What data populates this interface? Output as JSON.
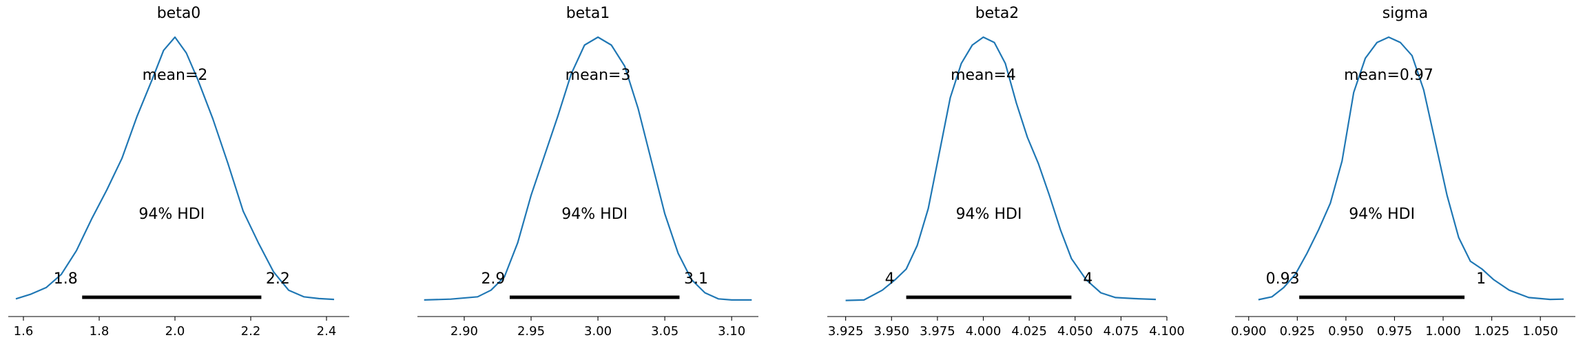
{
  "chart_data": [
    {
      "type": "line",
      "title": "beta0",
      "mean_label": "mean=2",
      "hdi_label": "94% HDI",
      "hdi": [
        1.755,
        2.228
      ],
      "hdi_labels": [
        "1.8",
        "2.2"
      ],
      "xlim": [
        1.56,
        2.46
      ],
      "xticks": [
        1.6,
        1.8,
        2.0,
        2.2,
        2.4
      ],
      "xtick_labels": [
        "1.6",
        "1.8",
        "2.0",
        "2.2",
        "2.4"
      ],
      "color": "#1f77b4",
      "kde": {
        "x": [
          1.58,
          1.62,
          1.66,
          1.7,
          1.74,
          1.78,
          1.82,
          1.86,
          1.9,
          1.94,
          1.97,
          2.0,
          2.03,
          2.06,
          2.1,
          2.14,
          2.18,
          2.22,
          2.26,
          2.3,
          2.34,
          2.38,
          2.42
        ],
        "y": [
          0.007,
          0.025,
          0.05,
          0.1,
          0.19,
          0.31,
          0.42,
          0.54,
          0.7,
          0.84,
          0.95,
          1.0,
          0.94,
          0.84,
          0.69,
          0.52,
          0.34,
          0.22,
          0.11,
          0.04,
          0.015,
          0.008,
          0.005
        ]
      }
    },
    {
      "type": "line",
      "title": "beta1",
      "mean_label": "mean=3",
      "hdi_label": "94% HDI",
      "hdi": [
        2.934,
        3.061
      ],
      "hdi_labels": [
        "2.9",
        "3.1"
      ],
      "xlim": [
        2.865,
        3.12
      ],
      "xticks": [
        2.9,
        2.95,
        3.0,
        3.05,
        3.1
      ],
      "xtick_labels": [
        "2.90",
        "2.95",
        "3.00",
        "3.05",
        "3.10"
      ],
      "color": "#1f77b4",
      "kde": {
        "x": [
          2.87,
          2.89,
          2.91,
          2.92,
          2.93,
          2.94,
          2.95,
          2.96,
          2.97,
          2.98,
          2.99,
          3.0,
          3.01,
          3.02,
          3.03,
          3.04,
          3.05,
          3.06,
          3.07,
          3.08,
          3.09,
          3.1,
          3.115
        ],
        "y": [
          0.003,
          0.006,
          0.015,
          0.04,
          0.09,
          0.22,
          0.4,
          0.55,
          0.7,
          0.86,
          0.97,
          1.0,
          0.97,
          0.89,
          0.73,
          0.53,
          0.33,
          0.18,
          0.08,
          0.03,
          0.007,
          0.003,
          0.003
        ]
      }
    },
    {
      "type": "line",
      "title": "beta2",
      "mean_label": "mean=4",
      "hdi_label": "94% HDI",
      "hdi": [
        3.958,
        4.048
      ],
      "hdi_labels": [
        "4",
        "4"
      ],
      "xlim": [
        3.915,
        4.1
      ],
      "xticks": [
        3.925,
        3.95,
        3.975,
        4.0,
        4.025,
        4.05,
        4.075,
        4.1
      ],
      "xtick_labels": [
        "3.925",
        "3.950",
        "3.975",
        "4.000",
        "4.025",
        "4.050",
        "4.075",
        "4.100"
      ],
      "color": "#1f77b4",
      "kde": {
        "x": [
          3.925,
          3.935,
          3.945,
          3.952,
          3.958,
          3.964,
          3.97,
          3.976,
          3.982,
          3.988,
          3.994,
          4.0,
          4.006,
          4.012,
          4.018,
          4.024,
          4.03,
          4.036,
          4.042,
          4.048,
          4.056,
          4.064,
          4.072,
          4.082,
          4.094
        ],
        "y": [
          0.001,
          0.003,
          0.04,
          0.08,
          0.12,
          0.21,
          0.35,
          0.56,
          0.77,
          0.9,
          0.97,
          1.0,
          0.98,
          0.9,
          0.75,
          0.62,
          0.52,
          0.4,
          0.27,
          0.16,
          0.08,
          0.03,
          0.012,
          0.008,
          0.005
        ]
      }
    },
    {
      "type": "line",
      "title": "sigma",
      "mean_label": "mean=0.97",
      "hdi_label": "94% HDI",
      "hdi": [
        0.926,
        1.011
      ],
      "hdi_labels": [
        "0.93",
        "1"
      ],
      "xlim": [
        0.893,
        1.068
      ],
      "xticks": [
        0.9,
        0.925,
        0.95,
        0.975,
        1.0,
        1.025,
        1.05
      ],
      "xtick_labels": [
        "0.900",
        "0.925",
        "0.950",
        "0.975",
        "1.000",
        "1.025",
        "1.050"
      ],
      "color": "#1f77b4",
      "kde": {
        "x": [
          0.905,
          0.912,
          0.918,
          0.924,
          0.93,
          0.936,
          0.942,
          0.948,
          0.954,
          0.96,
          0.966,
          0.972,
          0.978,
          0.984,
          0.99,
          0.996,
          1.002,
          1.008,
          1.014,
          1.02,
          1.026,
          1.034,
          1.044,
          1.055,
          1.062
        ],
        "y": [
          0.004,
          0.015,
          0.05,
          0.1,
          0.18,
          0.27,
          0.37,
          0.53,
          0.79,
          0.92,
          0.98,
          1.0,
          0.98,
          0.93,
          0.8,
          0.6,
          0.4,
          0.24,
          0.15,
          0.12,
          0.08,
          0.04,
          0.012,
          0.005,
          0.006
        ]
      }
    }
  ]
}
